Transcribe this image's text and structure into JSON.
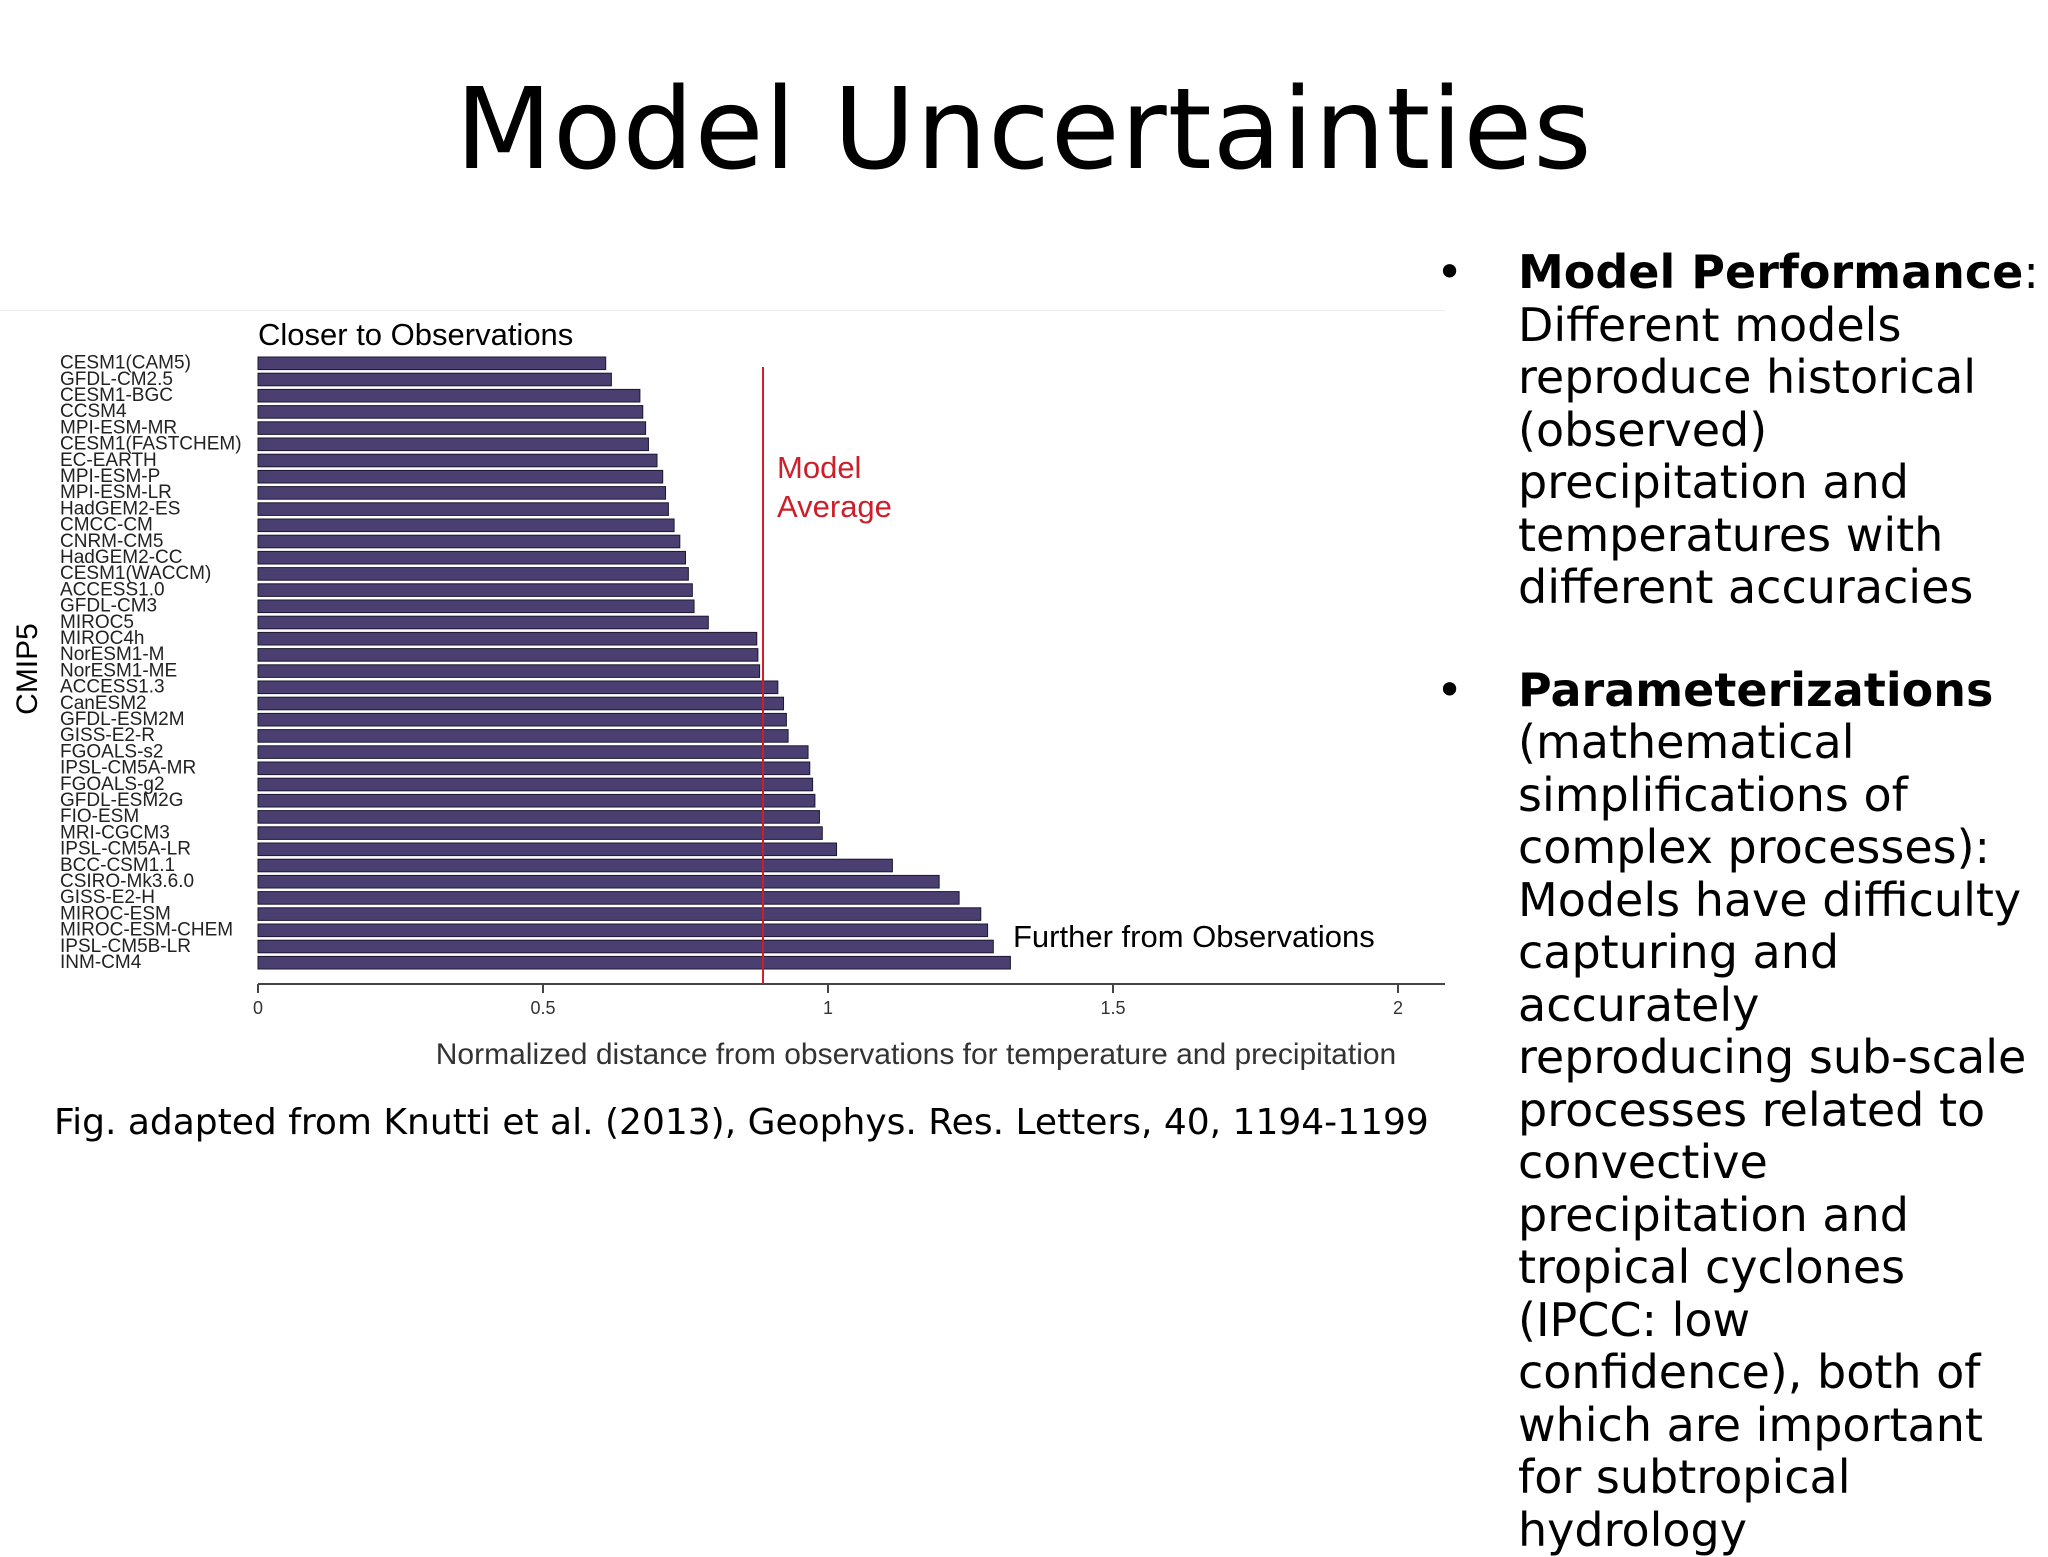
{
  "slide": {
    "title": "Model Uncertainties",
    "caption": "Fig. adapted from Knutti et al. (2013), Geophys. Res. Letters, 40, 1194-1199"
  },
  "bullets": [
    {
      "marker": "•",
      "heading": "Model Performance",
      "heading_suffix": ":",
      "text": "Different models reproduce  historical (observed) precipitation and temperatures with different accuracies"
    },
    {
      "marker": "•",
      "heading": "Parameterizations",
      "heading_suffix": "",
      "text": "(mathematical simplifications of complex processes): Models have difficulty capturing and accurately reproducing sub-scale processes related to convective precipitation and tropical cyclones (IPCC: low confidence), both of which are important for subtropical hydrology"
    }
  ],
  "chart_data": {
    "type": "bar",
    "orientation": "horizontal",
    "title": "",
    "ylabel": "CMIP5",
    "xlabel": "Normalized distance from observations for temperature and precipitation",
    "xlim": [
      0,
      2.1
    ],
    "xticks": [
      0,
      0.5,
      1,
      1.5,
      2
    ],
    "xtick_labels": [
      "0",
      "0.5",
      "1",
      "1.5",
      "2"
    ],
    "grid": false,
    "bar_color": "#4b3f72",
    "categories": [
      "CESM1(CAM5)",
      "GFDL-CM2.5",
      "CESM1-BGC",
      "CCSM4",
      "MPI-ESM-MR",
      "CESM1(FASTCHEM)",
      "EC-EARTH",
      "MPI-ESM-P",
      "MPI-ESM-LR",
      "HadGEM2-ES",
      "CMCC-CM",
      "CNRM-CM5",
      "HadGEM2-CC",
      "CESM1(WACCM)",
      "ACCESS1.0",
      "GFDL-CM3",
      "MIROC5",
      "MIROC4h",
      "NorESM1-M",
      "NorESM1-ME",
      "ACCESS1.3",
      "CanESM2",
      "GFDL-ESM2M",
      "GISS-E2-R",
      "FGOALS-s2",
      "IPSL-CM5A-MR",
      "FGOALS-g2",
      "GFDL-ESM2G",
      "FIO-ESM",
      "MRI-CGCM3",
      "IPSL-CM5A-LR",
      "BCC-CSM1.1",
      "CSIRO-Mk3.6.0",
      "GISS-E2-H",
      "MIROC-ESM",
      "MIROC-ESM-CHEM",
      "IPSL-CM5B-LR",
      "INM-CM4"
    ],
    "values": [
      0.61,
      0.62,
      0.67,
      0.675,
      0.68,
      0.685,
      0.7,
      0.71,
      0.715,
      0.72,
      0.73,
      0.74,
      0.75,
      0.755,
      0.762,
      0.765,
      0.79,
      0.875,
      0.877,
      0.88,
      0.912,
      0.922,
      0.927,
      0.93,
      0.965,
      0.968,
      0.973,
      0.977,
      0.985,
      0.99,
      1.015,
      1.113,
      1.195,
      1.23,
      1.268,
      1.28,
      1.29,
      1.32
    ],
    "reference_line": {
      "value": 0.886,
      "label_lines": [
        "Model",
        "Average"
      ],
      "color": "#cc1f2a"
    },
    "annotations": {
      "top": "Closer to Observations",
      "bottom": "Further from Observations"
    }
  }
}
